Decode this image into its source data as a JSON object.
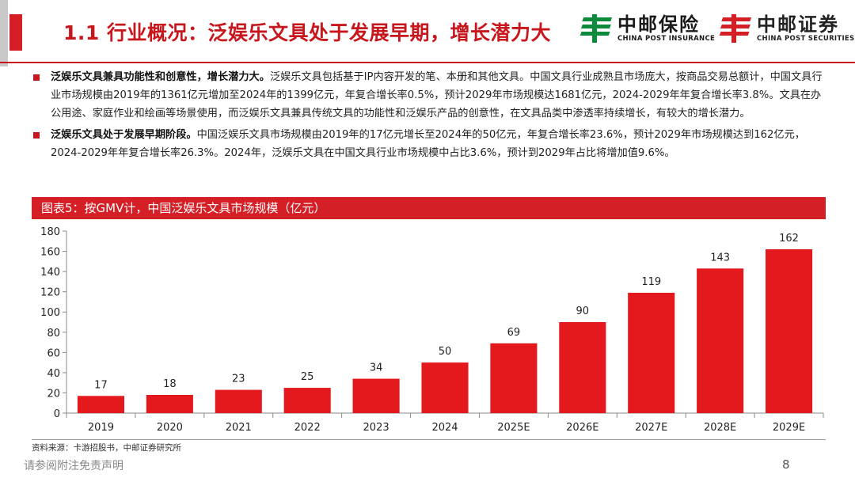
{
  "header": {
    "title": "1.1 行业概况：泛娱乐文具处于发展早期，增长潜力大",
    "logo_insurance": {
      "name": "中邮保险",
      "sub": "CHINA POST INSURANCE"
    },
    "logo_securities": {
      "name": "中邮证券",
      "sub": "CHINA POST SECURITIES"
    }
  },
  "bullets": [
    {
      "bold": "泛娱乐文具兼具功能性和创意性，增长潜力大。",
      "text": "泛娱乐文具包括基于IP内容开发的笔、本册和其他文具。中国文具行业成熟且市场庞大，按商品交易总额计，中国文具行业市场规模由2019年的1361亿元增加至2024年的1399亿元，年复合增长率0.5%，预计2029年市场规模达1681亿元，2024-2029年年复合增长率3.8%。文具在办公用途、家庭作业和绘画等场景使用，而泛娱乐文具兼具传统文具的功能性和泛娱乐产品的创意性，在文具品类中渗透率持续增长，有较大的增长潜力。"
    },
    {
      "bold": "泛娱乐文具处于发展早期阶段。",
      "text": "中国泛娱乐文具市场规模由2019年的17亿元增长至2024年的50亿元，年复合增长率23.6%，预计2029年市场规模达到162亿元，2024-2029年年复合增长率26.3%。2024年，泛娱乐文具在中国文具行业市场规模中占比3.6%，预计到2029年占比将增加值9.6%。"
    }
  ],
  "chart_caption": "图表5：按GMV计，中国泛娱乐文具市场规模（亿元）",
  "chart_data": {
    "type": "bar",
    "title": "图表5：按GMV计，中国泛娱乐文具市场规模（亿元）",
    "categories": [
      "2019",
      "2020",
      "2021",
      "2022",
      "2023",
      "2024",
      "2025E",
      "2026E",
      "2027E",
      "2028E",
      "2029E"
    ],
    "values": [
      17,
      18,
      23,
      25,
      34,
      50,
      69,
      90,
      119,
      143,
      162
    ],
    "yticks": [
      0,
      20,
      40,
      60,
      80,
      100,
      120,
      140,
      160,
      180
    ],
    "ylim": [
      0,
      180
    ],
    "xlabel": "",
    "ylabel": "",
    "grid": false,
    "color": "#e3191e"
  },
  "source": "资料来源：卡游招股书，中邮证券研究所",
  "footer": {
    "disclaimer": "请参阅附注免责声明",
    "page": "8"
  }
}
